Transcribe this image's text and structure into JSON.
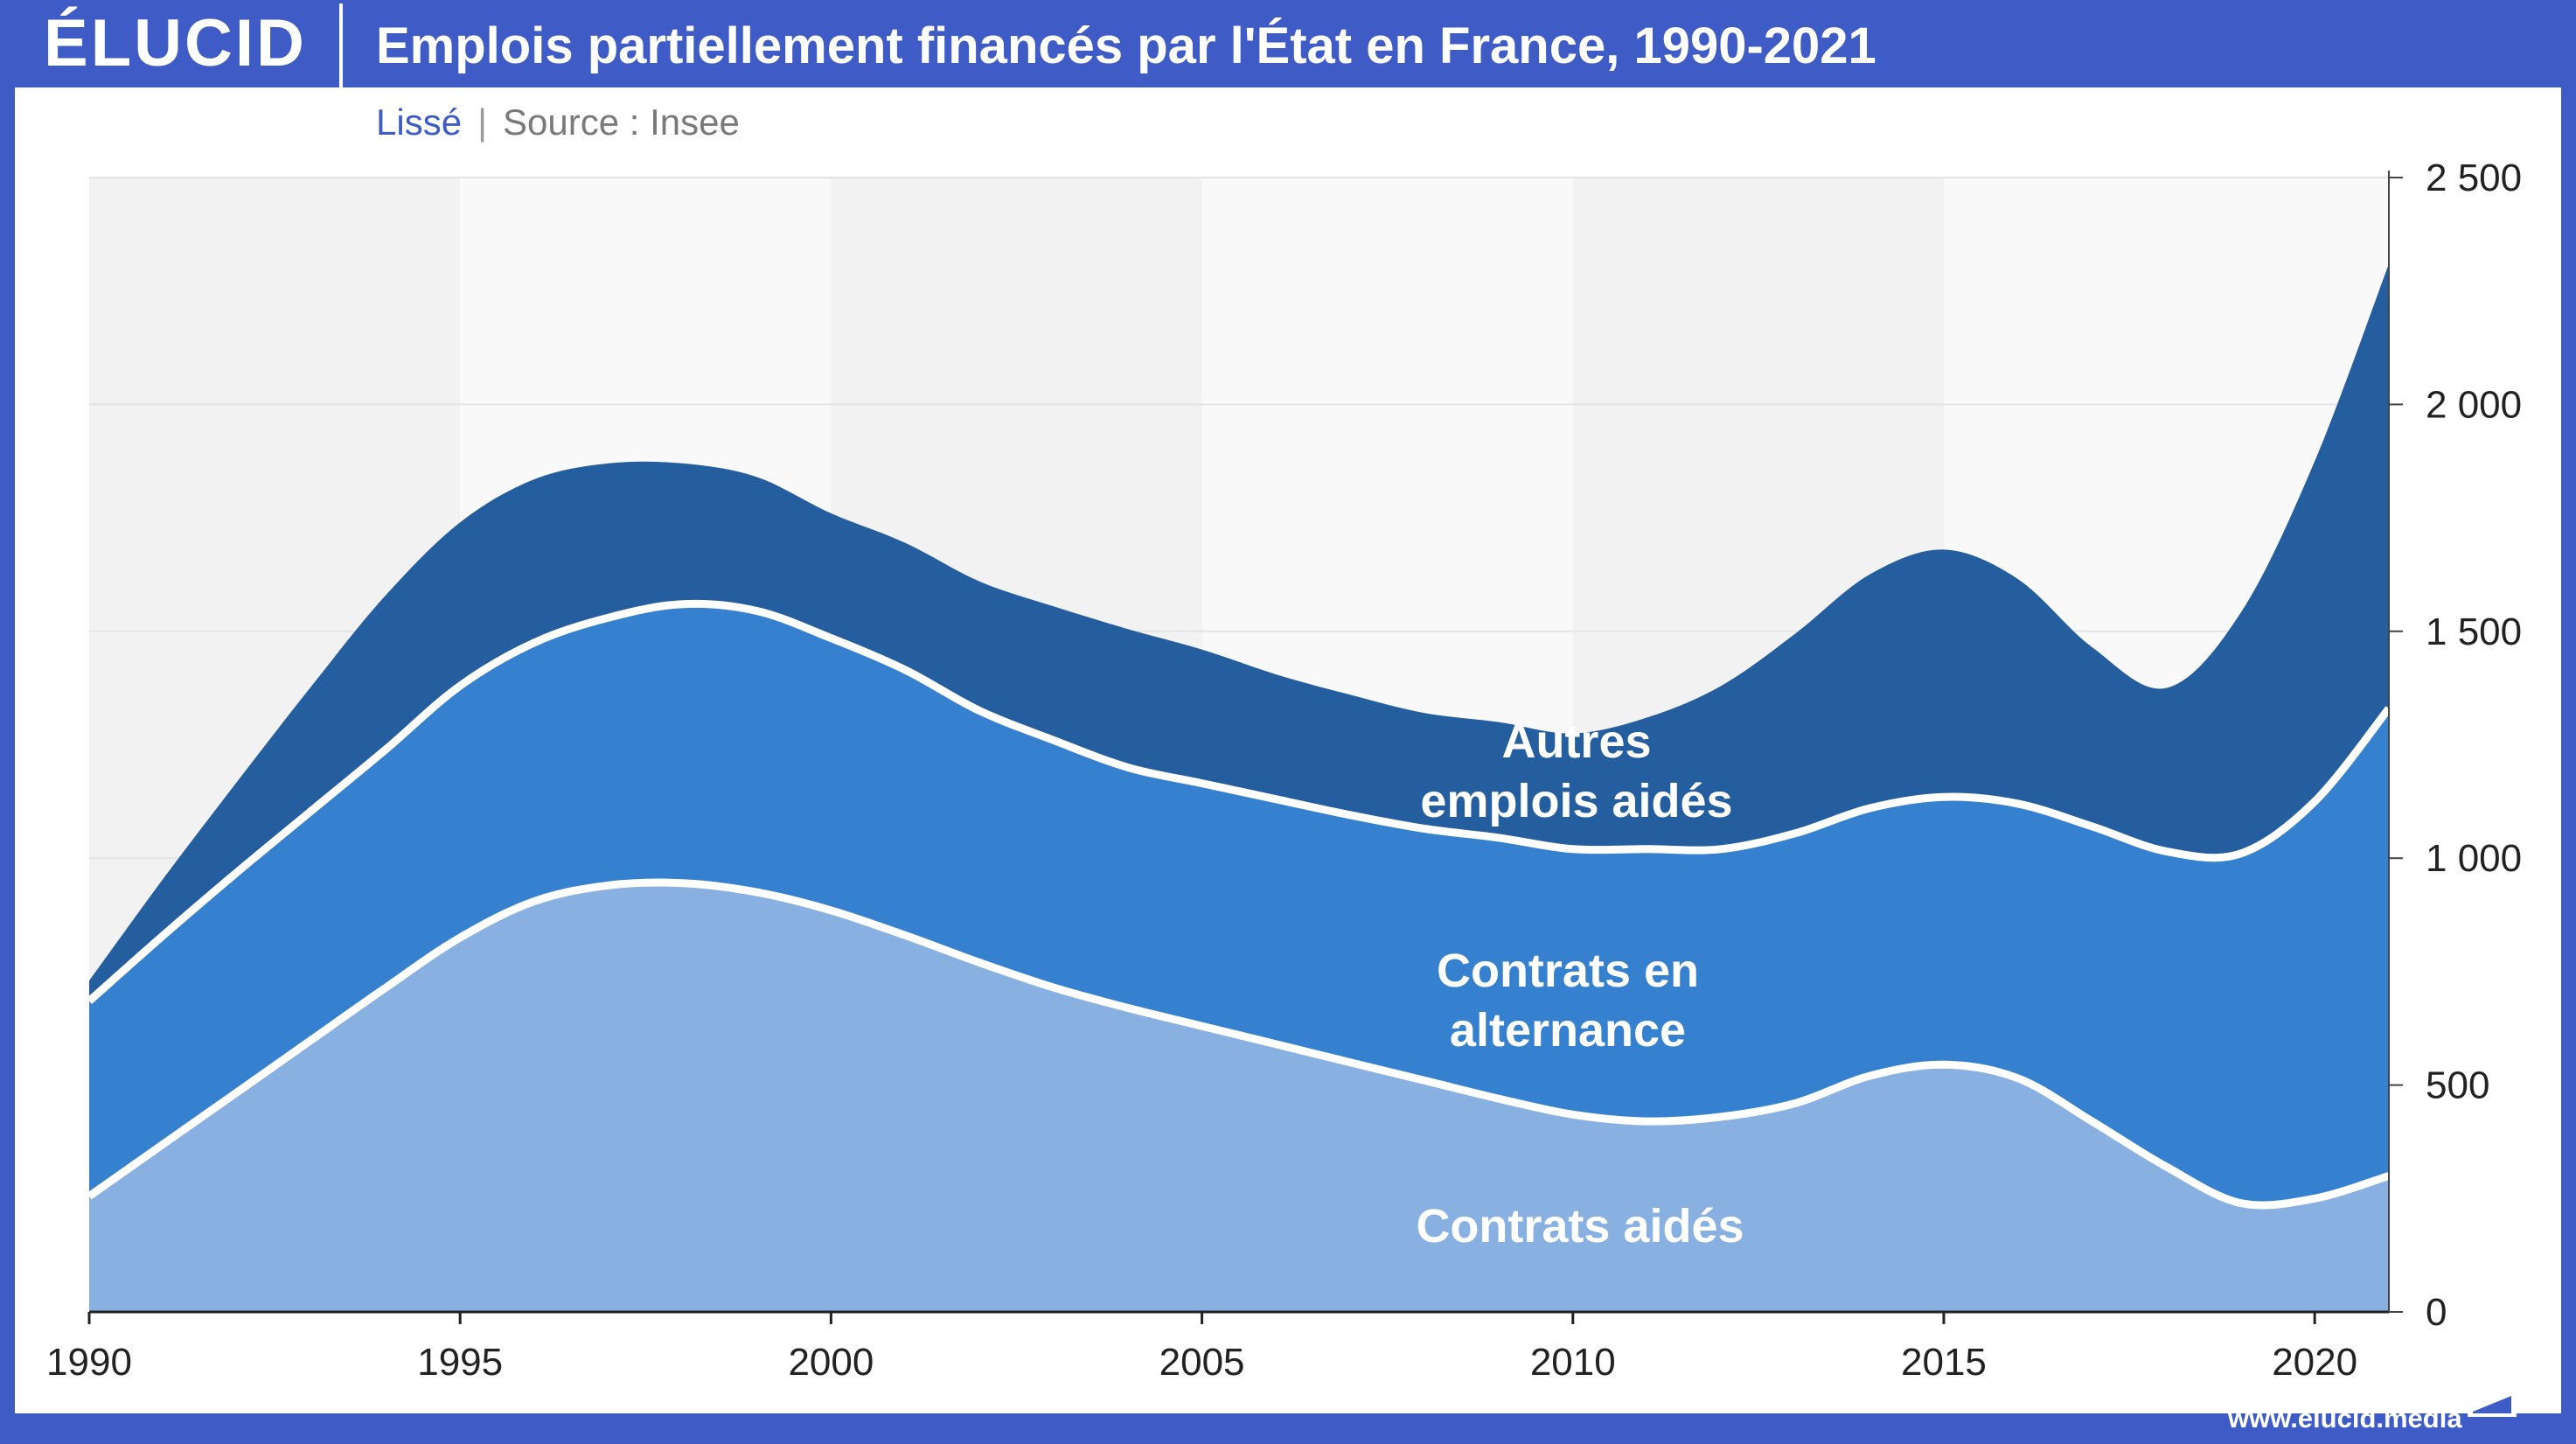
{
  "header": {
    "logo": "ÉLUCID",
    "title": "Emplois partiellement financés par l'État en France, 1990-2021"
  },
  "subtitle": {
    "mode": "Lissé",
    "separator": "|",
    "source": "Source : Insee"
  },
  "footer": {
    "url": "www.elucid.media"
  },
  "colors": {
    "frame": "#3F5BC6",
    "contrats_aides": "#88B0E1",
    "alternance": "#3580CF",
    "autres": "#245E9E",
    "separator_line": "#FFFFFF"
  },
  "chart_data": {
    "type": "area",
    "stacked": true,
    "x": [
      1990,
      1991,
      1992,
      1993,
      1994,
      1995,
      1996,
      1997,
      1998,
      1999,
      2000,
      2001,
      2002,
      2003,
      2004,
      2005,
      2006,
      2007,
      2008,
      2009,
      2010,
      2011,
      2012,
      2013,
      2014,
      2015,
      2016,
      2017,
      2018,
      2019,
      2020,
      2021
    ],
    "x_ticks": [
      "1990",
      "1995",
      "2000",
      "2005",
      "2010",
      "2015",
      "2020"
    ],
    "x_tick_values": [
      1990,
      1995,
      2000,
      2005,
      2010,
      2015,
      2020
    ],
    "ylim": [
      0,
      2500
    ],
    "y_ticks": [
      "0",
      "500",
      "1 000",
      "1 500",
      "2 000",
      "2 500"
    ],
    "y_tick_values": [
      0,
      500,
      1000,
      1500,
      2000,
      2500
    ],
    "y_axis_position": "right",
    "series": [
      {
        "name": "Contrats aidés",
        "color_key": "contrats_aides",
        "values": [
          255,
          370,
          485,
          600,
          715,
          825,
          905,
          940,
          945,
          925,
          885,
          830,
          770,
          715,
          670,
          630,
          590,
          550,
          510,
          470,
          435,
          420,
          430,
          460,
          520,
          545,
          515,
          420,
          320,
          240,
          250,
          300
        ]
      },
      {
        "name": "Contrats en alternance",
        "color_key": "alternance",
        "values": [
          430,
          460,
          485,
          505,
          525,
          555,
          570,
          590,
          615,
          620,
          600,
          585,
          555,
          545,
          530,
          535,
          540,
          545,
          555,
          575,
          585,
          600,
          590,
          595,
          590,
          590,
          605,
          650,
          695,
          770,
          875,
          1030
        ]
      },
      {
        "name": "Autres emplois aidés",
        "color_key": "autres",
        "values": [
          45,
          125,
          200,
          275,
          340,
          360,
          360,
          340,
          310,
          295,
          275,
          280,
          285,
          295,
          305,
          295,
          275,
          265,
          255,
          255,
          255,
          290,
          360,
          440,
          515,
          545,
          495,
          395,
          360,
          530,
          750,
          980
        ]
      }
    ],
    "labels": [
      "Autres emplois aidés",
      "Contrats en alternance",
      "Contrats aidés"
    ]
  }
}
